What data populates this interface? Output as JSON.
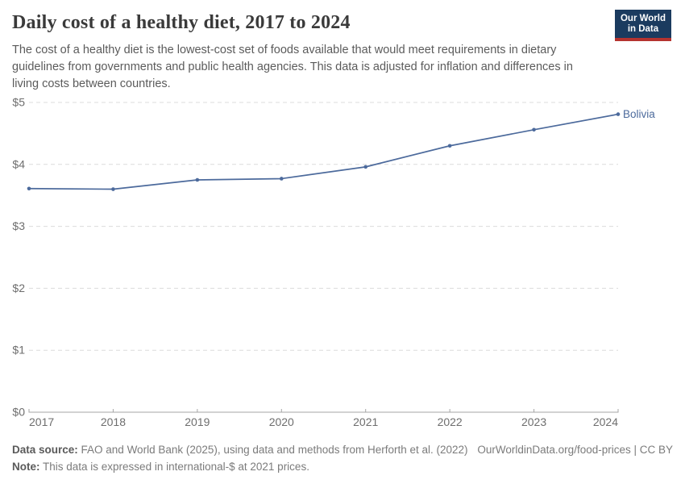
{
  "header": {
    "title": "Daily cost of a healthy diet, 2017 to 2024",
    "subtitle": "The cost of a healthy diet is the lowest-cost set of foods available that would meet requirements in dietary guidelines from governments and public health agencies. This data is adjusted for inflation and differences in living costs between countries.",
    "logo": {
      "line1": "Our World",
      "line2": "in Data"
    }
  },
  "chart_data": {
    "type": "line",
    "title": "Daily cost of a healthy diet, 2017 to 2024",
    "x": [
      2017,
      2018,
      2019,
      2020,
      2021,
      2022,
      2023,
      2024
    ],
    "series": [
      {
        "name": "Bolivia",
        "color": "#4c6a9c",
        "values": [
          3.61,
          3.6,
          3.75,
          3.77,
          3.96,
          4.3,
          4.56,
          4.81
        ]
      }
    ],
    "end_label": "Bolivia",
    "ylim": [
      0,
      5
    ],
    "yticks": [
      0,
      1,
      2,
      3,
      4,
      5
    ],
    "ytick_prefix": "$",
    "xlabel": "",
    "ylabel": "",
    "grid": "horizontal-dashed",
    "legend": "line-end-label"
  },
  "footer": {
    "source_label": "Data source:",
    "source_text": " FAO and World Bank (2025), using data and methods from Herforth et al. (2022)",
    "rights": "OurWorldinData.org/food-prices | CC BY",
    "note_label": "Note:",
    "note_text": " This data is expressed in international-$ at 2021 prices."
  },
  "colors": {
    "line": "#4c6a9c",
    "logo_navy": "#1b3b5f",
    "logo_red": "#b5332f",
    "grid": "#dcdcdc",
    "axis": "#a5a5a5",
    "tick_text": "#6e6e6e"
  }
}
